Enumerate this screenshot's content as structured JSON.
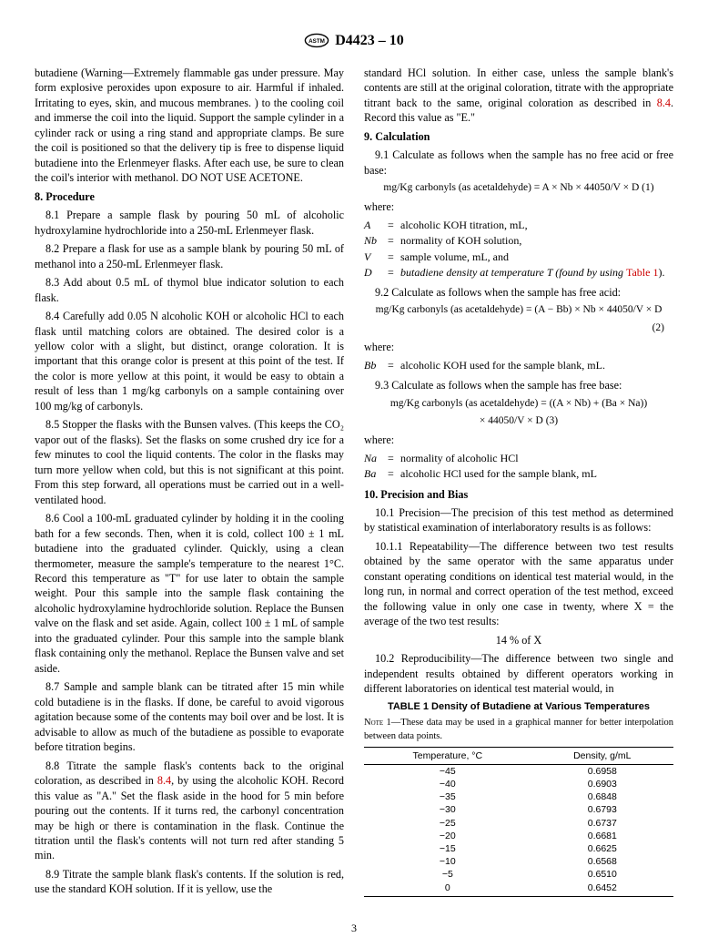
{
  "header": {
    "designation": "D4423 – 10"
  },
  "col1": {
    "intro": "butadiene (Warning—Extremely flammable gas under pressure. May form explosive peroxides upon exposure to air. Harmful if inhaled. Irritating to eyes, skin, and mucous membranes. ) to the cooling coil and immerse the coil into the liquid. Support the sample cylinder in a cylinder rack or using a ring stand and appropriate clamps. Be sure the coil is positioned so that the delivery tip is free to dispense liquid butadiene into the Erlenmeyer flasks. After each use, be sure to clean the coil's interior with methanol. DO NOT USE ACETONE.",
    "s8_title": "8. Procedure",
    "p81": "8.1 Prepare a sample flask by pouring 50 mL of alcoholic hydroxylamine hydrochloride into a 250-mL Erlenmeyer flask.",
    "p82": "8.2 Prepare a flask for use as a sample blank by pouring 50 mL of methanol into a 250-mL Erlenmeyer flask.",
    "p83": "8.3 Add about 0.5 mL of thymol blue indicator solution to each flask.",
    "p84": "8.4 Carefully add 0.05 N alcoholic KOH or alcoholic HCl to each flask until matching colors are obtained. The desired color is a yellow color with a slight, but distinct, orange coloration. It is important that this orange color is present at this point of the test. If the color is more yellow at this point, it would be easy to obtain a result of less than 1 mg/kg carbonyls on a sample containing over 100 mg/kg of carbonyls.",
    "p85": "8.5 Stopper the flasks with the Bunsen valves. (This keeps the CO₂ vapor out of the flasks). Set the flasks on some crushed dry ice for a few minutes to cool the liquid contents. The color in the flasks may turn more yellow when cold, but this is not significant at this point. From this step forward, all operations must be carried out in a well-ventilated hood.",
    "p86": "8.6 Cool a 100-mL graduated cylinder by holding it in the cooling bath for a few seconds. Then, when it is cold, collect 100 ± 1 mL butadiene into the graduated cylinder. Quickly, using a clean thermometer, measure the sample's temperature to the nearest 1°C. Record this temperature as \"T\" for use later to obtain the sample weight. Pour this sample into the sample flask containing the alcoholic hydroxylamine hydrochloride solution. Replace the Bunsen valve on the flask and set aside. Again, collect 100 ± 1 mL of sample into the graduated cylinder. Pour this sample into the sample blank flask containing only the methanol. Replace the Bunsen valve and set aside.",
    "p87": "8.7 Sample and sample blank can be titrated after 15 min while cold butadiene is in the flasks. If done, be careful to avoid vigorous agitation because some of the contents may boil over and be lost. It is advisable to allow as much of the butadiene as possible to evaporate before titration begins.",
    "p88a": "8.8 Titrate the sample flask's contents back to the original coloration, as described in ",
    "p88link": "8.4",
    "p88b": ", by using the alcoholic KOH. Record this value as \"A.\" Set the flask aside in the hood for 5 min before pouring out the contents. If it turns red, the carbonyl concentration may be high or there is contamination in the flask. Continue the titration until the flask's contents will not turn red after standing 5 min.",
    "p89": "8.9 Titrate the sample blank flask's contents. If the solution is red, use the standard KOH solution. If it is yellow, use the"
  },
  "col2": {
    "cont_a": "standard HCl solution. In either case, unless the sample blank's contents are still at the original coloration, titrate with the appropriate titrant back to the same, original coloration as described in ",
    "cont_link": "8.4",
    "cont_b": ". Record this value as \"E.\"",
    "s9_title": "9. Calculation",
    "p91": "9.1 Calculate as follows when the sample has no free acid or free base:",
    "eq1": "mg/Kg carbonyls (as acetaldehyde) = A × Nb × 44050/V × D   (1)",
    "where": "where:",
    "defs1": {
      "A": "alcoholic KOH titration, mL,",
      "Nb": "normality of KOH solution,",
      "V": "sample volume, mL, and",
      "D_a": "butadiene density at temperature T (found by using ",
      "D_link": "Table 1",
      "D_b": ")."
    },
    "p92": "9.2 Calculate as follows when the sample has free acid:",
    "eq2a": "mg/Kg carbonyls (as acetaldehyde) = (A − Bb) × Nb × 44050/V × D",
    "eq2n": "(2)",
    "defs2": {
      "Bb": "alcoholic KOH used for the sample blank, mL."
    },
    "p93": "9.3 Calculate as follows when the sample has free base:",
    "eq3a": "mg/Kg carbonyls (as acetaldehyde) = ((A × Nb) + (Ba × Na))",
    "eq3b": "× 44050/V × D                     (3)",
    "defs3": {
      "Na": "normality of alcoholic HCl",
      "Ba": "alcoholic HCl used for the sample blank, mL"
    },
    "s10_title": "10. Precision and Bias",
    "p101": "10.1 Precision—The precision of this test method as determined by statistical examination of interlaboratory results is as follows:",
    "p1011": "10.1.1 Repeatability—The difference between two test results obtained by the same operator with the same apparatus under constant operating conditions on identical test material would, in the long run, in normal and correct operation of the test method, exceed the following value in only one case in twenty, where X = the average of the two test results:",
    "repeat_val": "14 % of X",
    "p102": "10.2 Reproducibility—The difference between two single and independent results obtained by different operators working in different laboratories on identical test material would, in"
  },
  "table1": {
    "title": "TABLE 1 Density of Butadiene at Various Temperatures",
    "note_label": "Note 1—",
    "note": "These data may be used in a graphical manner for better interpolation between data points.",
    "col_temp": "Temperature, °C",
    "col_dens": "Density, g/mL",
    "rows": [
      [
        "−45",
        "0.6958"
      ],
      [
        "−40",
        "0.6903"
      ],
      [
        "−35",
        "0.6848"
      ],
      [
        "−30",
        "0.6793"
      ],
      [
        "−25",
        "0.6737"
      ],
      [
        "−20",
        "0.6681"
      ],
      [
        "−15",
        "0.6625"
      ],
      [
        "−10",
        "0.6568"
      ],
      [
        "−5",
        "0.6510"
      ],
      [
        "0",
        "0.6452"
      ]
    ]
  },
  "page_number": "3"
}
